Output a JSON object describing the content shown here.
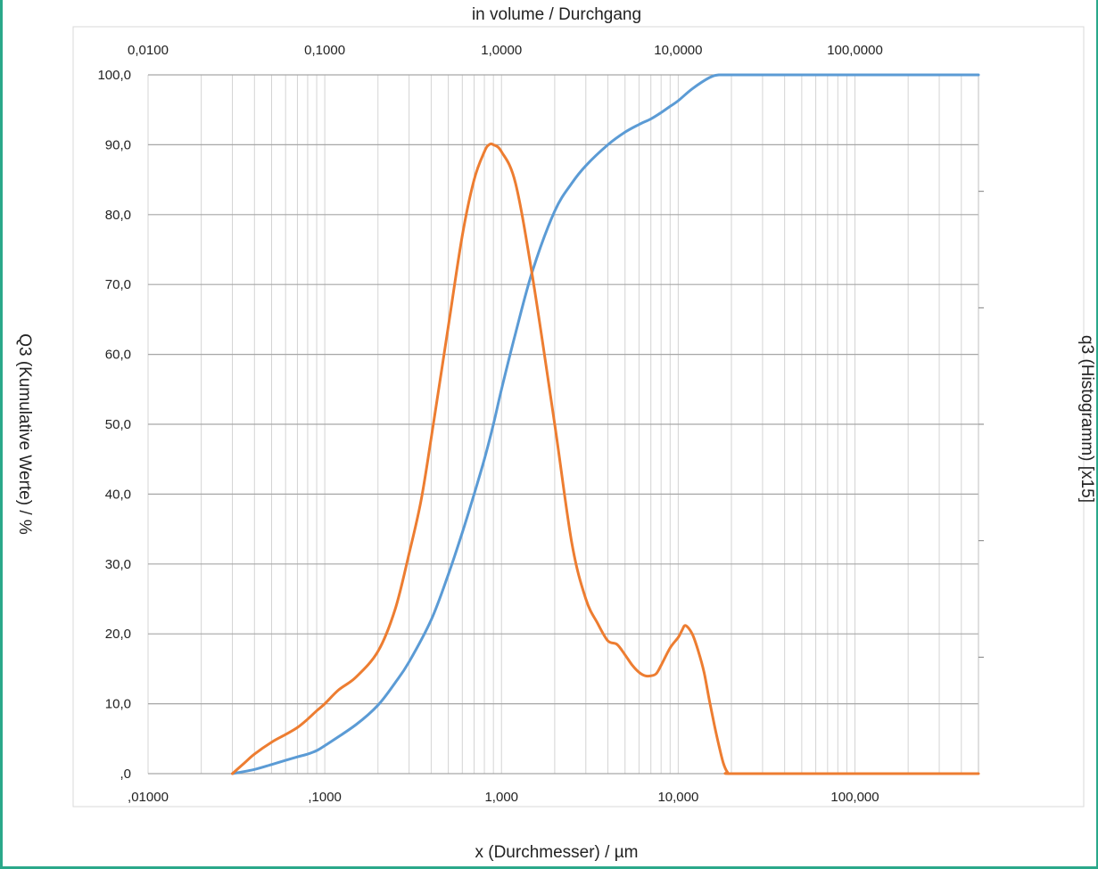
{
  "chart_data": {
    "type": "line",
    "title": "in volume / Durchgang",
    "xlabel": "x (Durchmesser) / µm",
    "ylabel": "Q3 (Kumulative Werte) / %",
    "y2label": "q3 (Histogramm) [x15]",
    "x_scale": "log",
    "xlim": [
      0.01,
      500
    ],
    "ylim": [
      0,
      100
    ],
    "grid": true,
    "legend": "none",
    "x_ticks_bottom": [
      {
        "value": 0.01,
        "label": ",01000"
      },
      {
        "value": 0.1,
        "label": ",1000"
      },
      {
        "value": 1,
        "label": "1,000"
      },
      {
        "value": 10,
        "label": "10,000"
      },
      {
        "value": 100,
        "label": "100,000"
      }
    ],
    "x_ticks_top": [
      {
        "value": 0.01,
        "label": "0,0100"
      },
      {
        "value": 0.1,
        "label": "0,1000"
      },
      {
        "value": 1,
        "label": "1,0000"
      },
      {
        "value": 10,
        "label": "10,0000"
      },
      {
        "value": 100,
        "label": "100,0000"
      }
    ],
    "y_ticks": [
      {
        "value": 0,
        "label": ",0"
      },
      {
        "value": 10,
        "label": "10,0"
      },
      {
        "value": 20,
        "label": "20,0"
      },
      {
        "value": 30,
        "label": "30,0"
      },
      {
        "value": 40,
        "label": "40,0"
      },
      {
        "value": 50,
        "label": "50,0"
      },
      {
        "value": 60,
        "label": "60,0"
      },
      {
        "value": 70,
        "label": "70,0"
      },
      {
        "value": 80,
        "label": "80,0"
      },
      {
        "value": 90,
        "label": "90,0"
      },
      {
        "value": 100,
        "label": "100,0"
      }
    ],
    "series": [
      {
        "color": "#5b9bd5",
        "x": [
          0.03,
          0.04,
          0.05,
          0.06,
          0.07,
          0.08,
          0.09,
          0.1,
          0.15,
          0.2,
          0.25,
          0.3,
          0.4,
          0.5,
          0.6,
          0.7,
          0.8,
          0.9,
          1.0,
          1.2,
          1.5,
          2.0,
          2.5,
          3.0,
          4.0,
          5.0,
          6.0,
          7.0,
          8.0,
          9.0,
          10.0,
          12.0,
          15.0,
          17.0,
          20.0,
          50.0,
          100.0,
          200.0,
          500.0
        ],
        "y": [
          0,
          0.6,
          1.3,
          1.9,
          2.4,
          2.8,
          3.3,
          4.0,
          7.0,
          9.8,
          13.0,
          16.0,
          22.0,
          28.5,
          34.5,
          40.0,
          45.0,
          50.0,
          55.0,
          63.0,
          72.0,
          80.5,
          84.5,
          87.0,
          90.0,
          91.8,
          92.9,
          93.7,
          94.6,
          95.5,
          96.3,
          98.0,
          99.6,
          100,
          100,
          100,
          100,
          100,
          100
        ]
      },
      {
        "color": "#ed7d31",
        "x": [
          0.03,
          0.035,
          0.04,
          0.05,
          0.06,
          0.07,
          0.08,
          0.09,
          0.1,
          0.12,
          0.15,
          0.2,
          0.25,
          0.3,
          0.35,
          0.4,
          0.5,
          0.6,
          0.7,
          0.8,
          0.85,
          0.9,
          1.0,
          1.2,
          1.5,
          2.0,
          2.5,
          3.0,
          3.5,
          4.0,
          4.5,
          5.0,
          5.5,
          6.0,
          6.5,
          7.0,
          7.5,
          8.0,
          9.0,
          10.0,
          10.5,
          11.0,
          12.0,
          13.0,
          14.0,
          15.0,
          16.0,
          17.0,
          18.0,
          19.0,
          20.0,
          50.0,
          100.0,
          200.0,
          500.0
        ],
        "y": [
          0,
          1.5,
          2.8,
          4.5,
          5.6,
          6.6,
          7.8,
          9.0,
          10.0,
          12.0,
          13.8,
          17.5,
          23.5,
          31.5,
          39.0,
          48.0,
          64.0,
          77.0,
          85.0,
          89.0,
          90.0,
          90.0,
          89.0,
          84.5,
          71.0,
          50.0,
          33.0,
          25.0,
          21.5,
          19.0,
          18.5,
          17.0,
          15.5,
          14.5,
          14.0,
          14.0,
          14.3,
          15.5,
          18.0,
          19.5,
          20.5,
          21.2,
          20.0,
          17.5,
          14.5,
          10.5,
          7.0,
          4.0,
          1.5,
          0.2,
          0,
          0,
          0,
          0,
          0
        ]
      }
    ]
  }
}
